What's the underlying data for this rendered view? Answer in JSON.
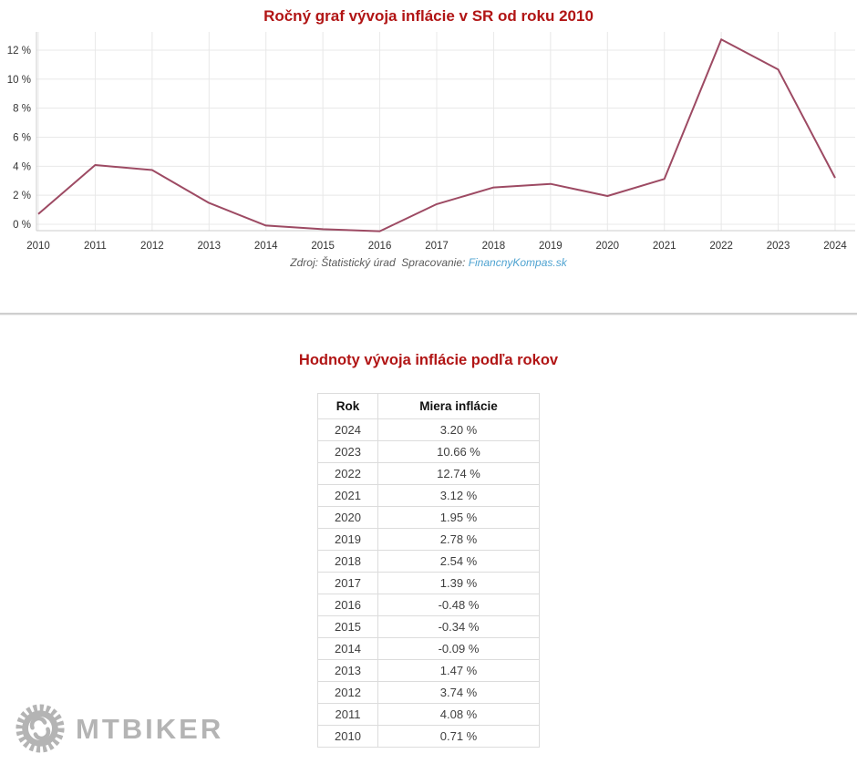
{
  "chart": {
    "title": "Ročný graf vývoja inflácie v SR od roku 2010",
    "source_prefix": "Zdroj: Štatistický úrad  Spracovanie: ",
    "source_link": "FinancnyKompas.sk"
  },
  "chart_data": {
    "type": "line",
    "title": "Ročný graf vývoja inflácie v SR od roku 2010",
    "x": [
      2010,
      2011,
      2012,
      2013,
      2014,
      2015,
      2016,
      2017,
      2018,
      2019,
      2020,
      2021,
      2022,
      2023,
      2024
    ],
    "xtick_labels": [
      "2010",
      "2011",
      "2012",
      "2013",
      "2014",
      "2015",
      "2016",
      "2017",
      "2018",
      "2019",
      "2020",
      "2021",
      "2022",
      "2023",
      "2024"
    ],
    "series": [
      {
        "name": "Miera inflácie",
        "values": [
          0.71,
          4.08,
          3.74,
          1.47,
          -0.09,
          -0.34,
          -0.48,
          1.39,
          2.54,
          2.78,
          1.95,
          3.12,
          12.74,
          10.66,
          3.2
        ]
      }
    ],
    "yticks": [
      0,
      2,
      4,
      6,
      8,
      10,
      12
    ],
    "ytick_labels": [
      "0 %",
      "2 %",
      "4 %",
      "6 %",
      "8 %",
      "10 %",
      "12 %"
    ],
    "ylim": [
      -0.5,
      13.3
    ],
    "grid": true,
    "legend": "none",
    "xlabel": "",
    "ylabel": "",
    "line_color": "#9d4a63",
    "grid_color": "#e8e8e8",
    "axis_color": "#cccccc",
    "tick_color": "#333333"
  },
  "table": {
    "title": "Hodnoty vývoja inflácie podľa rokov",
    "columns": [
      "Rok",
      "Miera inflácie"
    ],
    "rows": [
      [
        "2024",
        "3.20 %"
      ],
      [
        "2023",
        "10.66 %"
      ],
      [
        "2022",
        "12.74 %"
      ],
      [
        "2021",
        "3.12 %"
      ],
      [
        "2020",
        "1.95 %"
      ],
      [
        "2019",
        "2.78 %"
      ],
      [
        "2018",
        "2.54 %"
      ],
      [
        "2017",
        "1.39 %"
      ],
      [
        "2016",
        "-0.48 %"
      ],
      [
        "2015",
        "-0.34 %"
      ],
      [
        "2014",
        "-0.09 %"
      ],
      [
        "2013",
        "1.47 %"
      ],
      [
        "2012",
        "3.74 %"
      ],
      [
        "2011",
        "4.08 %"
      ],
      [
        "2010",
        "0.71 %"
      ]
    ]
  },
  "watermark": {
    "text": "MTBIKER",
    "color": "#b4b4b4"
  }
}
